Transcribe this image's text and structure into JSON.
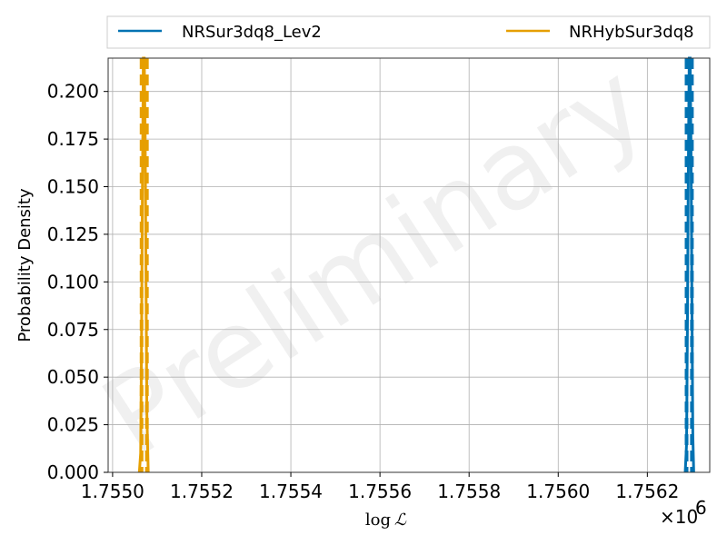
{
  "chart_data": {
    "type": "line",
    "title": "",
    "xlabel": "log ℒ",
    "xlabel_parts": {
      "func": "log",
      "symbol": "ℒ"
    },
    "ylabel": "Probability Density",
    "x_offset_label": {
      "prefix": "×10",
      "exponent": "6"
    },
    "xlim": [
      1.75499,
      1.75634
    ],
    "ylim": [
      0,
      0.2175
    ],
    "x_ticks": [
      {
        "value": 1.755,
        "label": "1.7550"
      },
      {
        "value": 1.7552,
        "label": "1.7552"
      },
      {
        "value": 1.7554,
        "label": "1.7554"
      },
      {
        "value": 1.7556,
        "label": "1.7556"
      },
      {
        "value": 1.7558,
        "label": "1.7558"
      },
      {
        "value": 1.756,
        "label": "1.7560"
      },
      {
        "value": 1.7562,
        "label": "1.7562"
      }
    ],
    "y_ticks": [
      {
        "value": 0.0,
        "label": "0.000"
      },
      {
        "value": 0.025,
        "label": "0.025"
      },
      {
        "value": 0.05,
        "label": "0.050"
      },
      {
        "value": 0.075,
        "label": "0.075"
      },
      {
        "value": 0.1,
        "label": "0.100"
      },
      {
        "value": 0.125,
        "label": "0.125"
      },
      {
        "value": 0.15,
        "label": "0.150"
      },
      {
        "value": 0.175,
        "label": "0.175"
      },
      {
        "value": 0.2,
        "label": "0.200"
      }
    ],
    "grid": true,
    "legend_placement": "top, outside plot, two columns",
    "watermark": "Preliminary",
    "series": [
      {
        "name": "NRSur3dq8_Lev2",
        "color": "#0072B2",
        "quantile_lines_x": [
          1.756288,
          1.7563
        ],
        "x": [
          1.756285,
          1.756288,
          1.75629,
          1.756292,
          1.756294,
          1.756296,
          1.756298,
          1.7563,
          1.756302,
          1.756304
        ],
        "y": [
          0.0,
          0.015,
          0.08,
          0.16,
          0.2175,
          0.2175,
          0.17,
          0.09,
          0.02,
          0.0
        ]
      },
      {
        "name": "NRHybSur3dq8",
        "color": "#E69F00",
        "quantile_lines_x": [
          1.755065,
          1.755077
        ],
        "x": [
          1.75506,
          1.755063,
          1.755065,
          1.755067,
          1.755069,
          1.755071,
          1.755073,
          1.755075,
          1.755077,
          1.75508
        ],
        "y": [
          0.0,
          0.01,
          0.07,
          0.15,
          0.2175,
          0.2175,
          0.18,
          0.1,
          0.03,
          0.0
        ]
      }
    ]
  }
}
